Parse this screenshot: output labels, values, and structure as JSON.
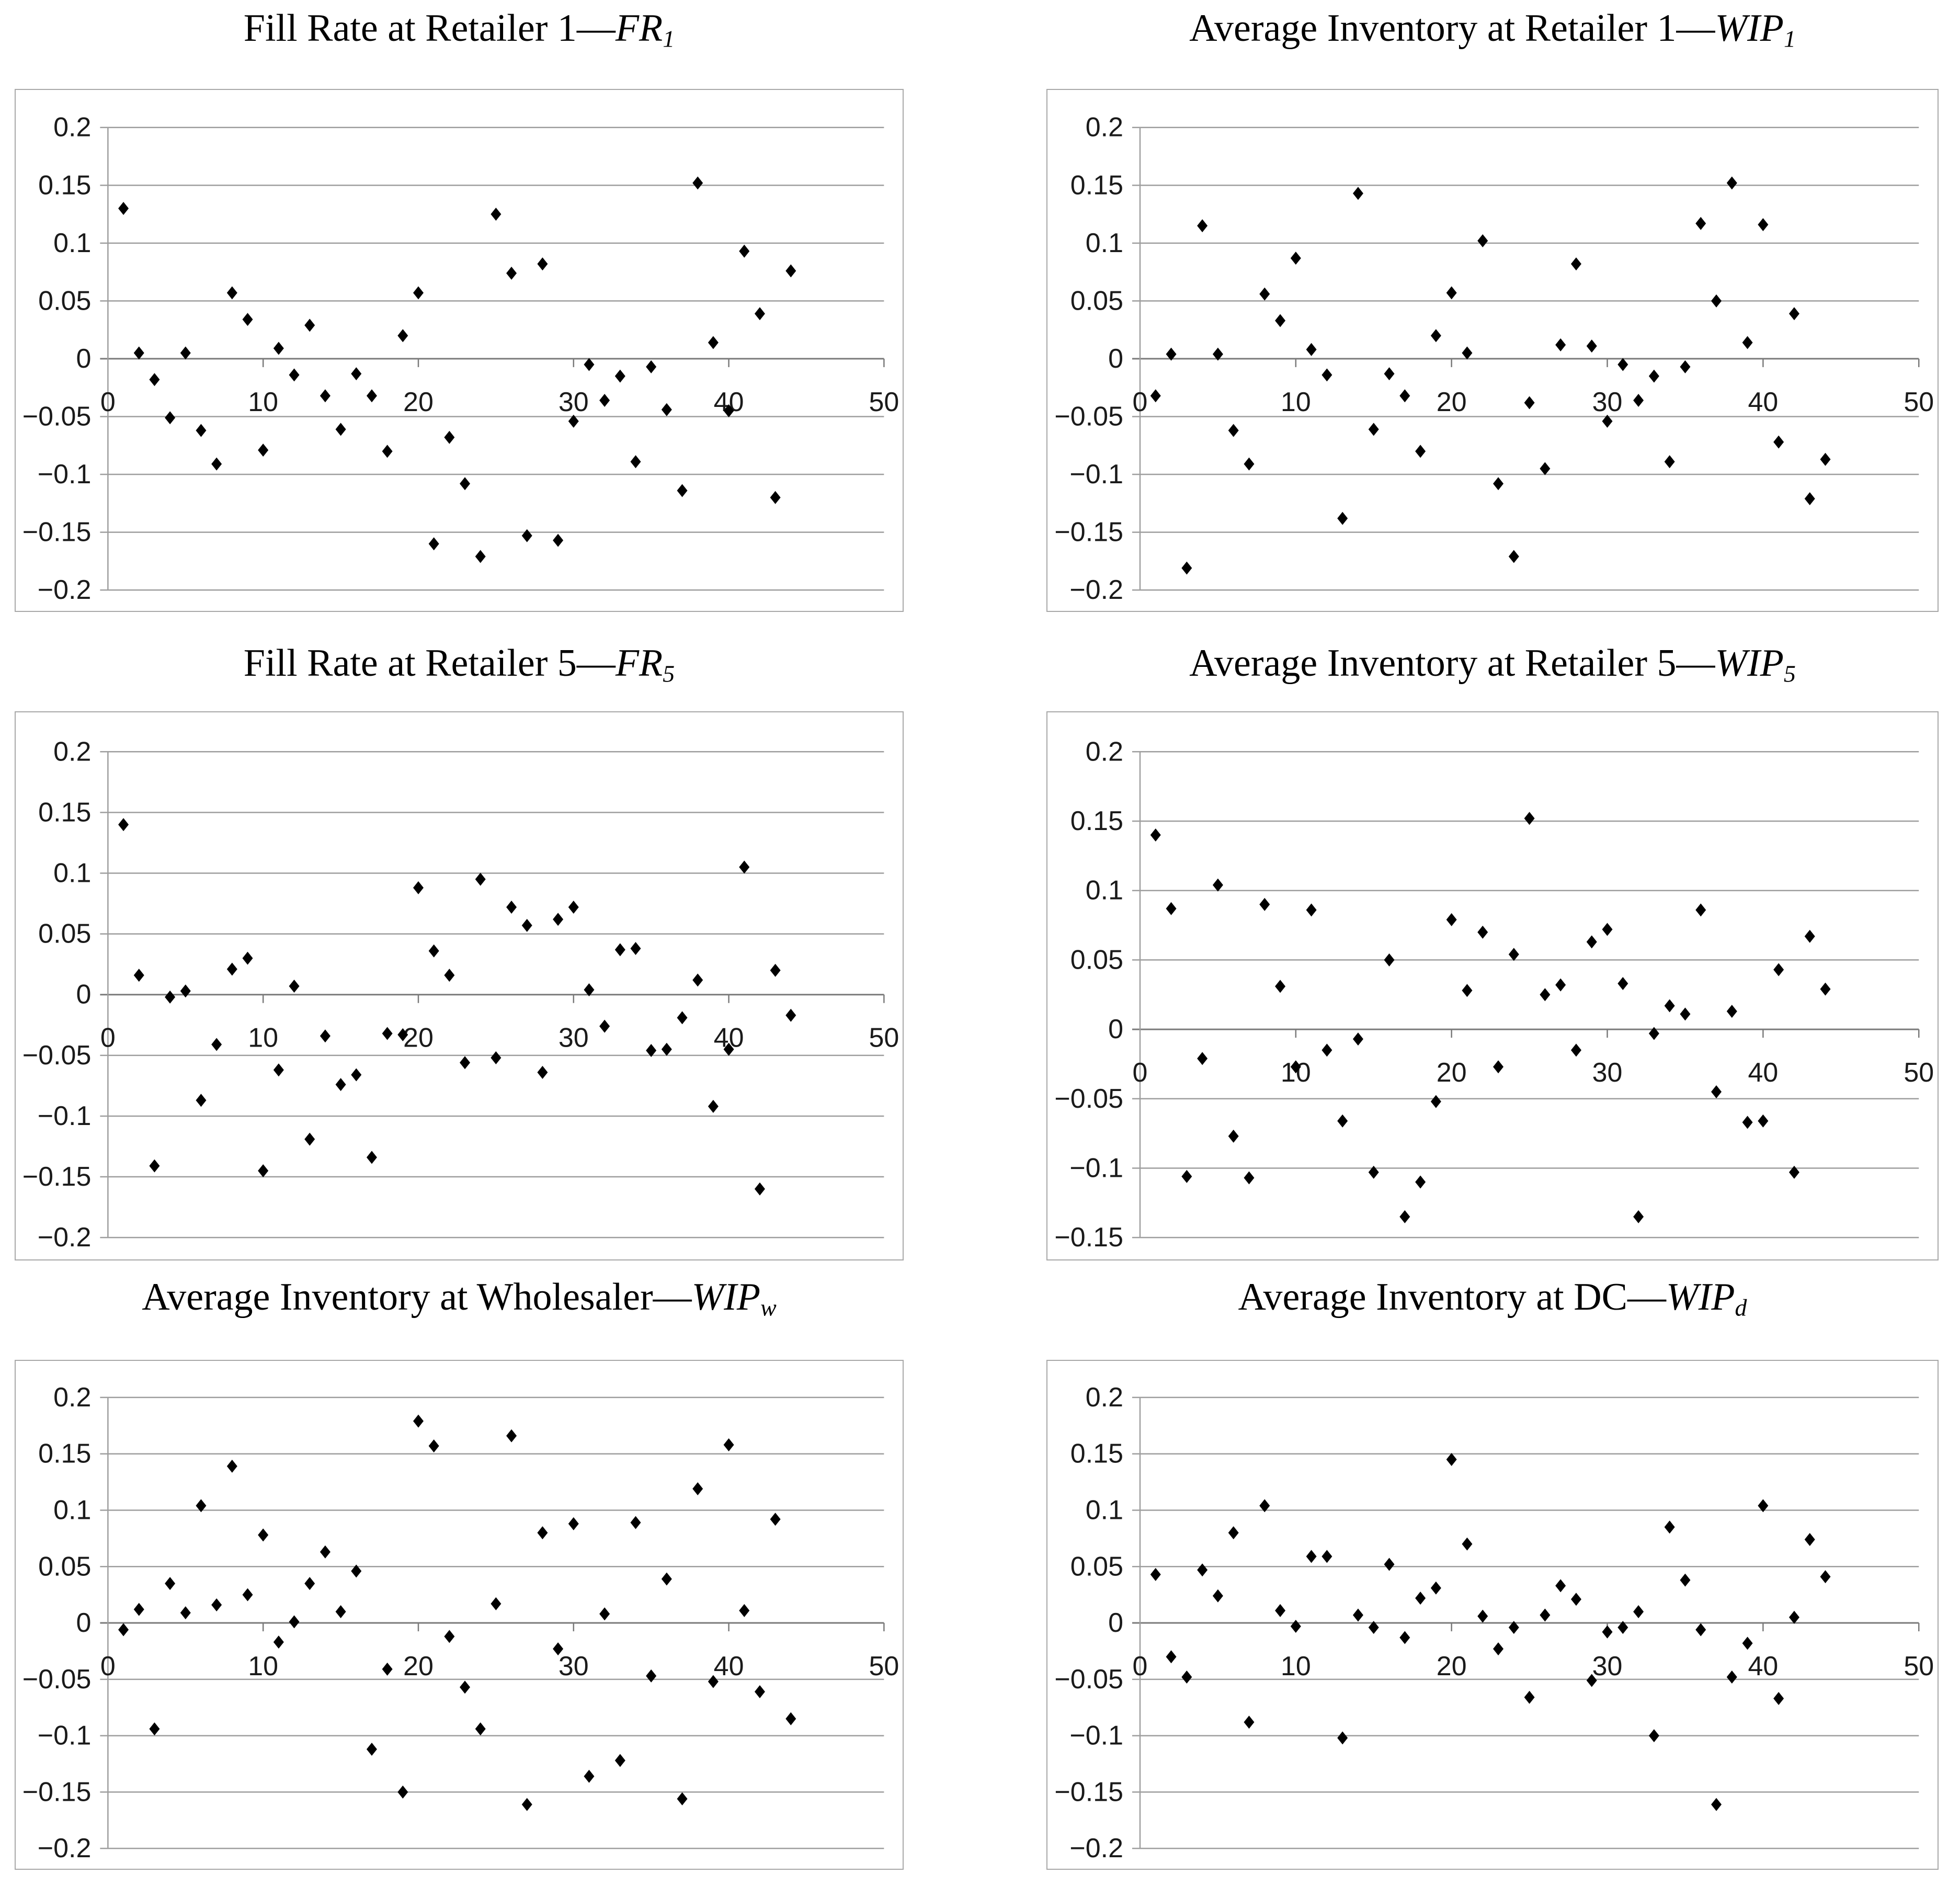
{
  "style": {
    "marker_color": "#000000",
    "gridline_color": "#9e9e9e",
    "zero_axis_color": "#7a7a7a",
    "yaxis_line_color": "#9e9e9e",
    "box_border_color": "#a8a8a8",
    "tick_label_color": "#1a1a1a",
    "background_color": "#ffffff"
  },
  "chart_data": [
    {
      "type": "scatter",
      "id": "FR1",
      "title": "Fill Rate at Retailer 1—FR1",
      "title_prefix": "Fill Rate at Retailer 1—",
      "title_var": "FR",
      "title_sub": "1",
      "marker": "diamond",
      "grid": "horizontal",
      "legend": "none",
      "xlabel": "",
      "ylabel": "",
      "xlim": [
        0,
        50
      ],
      "ylim": [
        -0.2,
        0.2
      ],
      "xticks": [
        0,
        10,
        20,
        30,
        40,
        50
      ],
      "yticks": [
        0.2,
        0.15,
        0.1,
        0.05,
        0,
        -0.05,
        -0.1,
        -0.15,
        -0.2
      ],
      "x": [
        1,
        2,
        3,
        4,
        5,
        6,
        7,
        8,
        9,
        10,
        11,
        12,
        13,
        14,
        15,
        16,
        17,
        18,
        19,
        20,
        21,
        22,
        23,
        24,
        25,
        26,
        27,
        28,
        29,
        30,
        31,
        32,
        33,
        34,
        35,
        36,
        37,
        38,
        39,
        40,
        41,
        42,
        43,
        44
      ],
      "y": [
        0.13,
        0.005,
        -0.018,
        -0.051,
        0.005,
        -0.062,
        -0.091,
        0.057,
        0.034,
        -0.079,
        0.009,
        -0.014,
        0.029,
        -0.032,
        -0.061,
        -0.013,
        -0.032,
        -0.08,
        0.02,
        0.057,
        -0.16,
        -0.068,
        -0.108,
        -0.171,
        0.125,
        0.074,
        -0.153,
        0.082,
        -0.157,
        -0.054,
        -0.005,
        -0.036,
        -0.015,
        -0.089,
        -0.007,
        -0.044,
        -0.114,
        0.152,
        0.014,
        -0.045,
        0.093,
        0.039,
        -0.12,
        0.076
      ]
    },
    {
      "type": "scatter",
      "id": "WIP1",
      "title": "Average Inventory at Retailer 1—WIP1",
      "title_prefix": "Average Inventory at Retailer 1—",
      "title_var": "WIP",
      "title_sub": "1",
      "marker": "diamond",
      "grid": "horizontal",
      "legend": "none",
      "xlabel": "",
      "ylabel": "",
      "xlim": [
        0,
        50
      ],
      "ylim": [
        -0.2,
        0.2
      ],
      "xticks": [
        0,
        10,
        20,
        30,
        40,
        50
      ],
      "yticks": [
        0.2,
        0.15,
        0.1,
        0.05,
        0,
        -0.05,
        -0.1,
        -0.15,
        -0.2
      ],
      "x": [
        1,
        2,
        3,
        4,
        5,
        6,
        7,
        8,
        9,
        10,
        11,
        12,
        13,
        14,
        15,
        16,
        17,
        18,
        19,
        20,
        21,
        22,
        23,
        24,
        25,
        26,
        27,
        28,
        29,
        30,
        31,
        32,
        33,
        34,
        35,
        36,
        37,
        38,
        39,
        40,
        41,
        42,
        43,
        44
      ],
      "y": [
        -0.032,
        0.004,
        -0.181,
        0.115,
        0.004,
        -0.062,
        -0.091,
        0.056,
        0.033,
        0.087,
        0.008,
        -0.014,
        -0.138,
        0.143,
        -0.061,
        -0.013,
        -0.032,
        -0.08,
        0.02,
        0.057,
        0.005,
        0.102,
        -0.108,
        -0.171,
        -0.038,
        -0.095,
        0.012,
        0.082,
        0.011,
        -0.054,
        -0.005,
        -0.036,
        -0.015,
        -0.089,
        -0.007,
        0.117,
        0.05,
        0.152,
        0.014,
        0.116,
        -0.072,
        0.039,
        -0.121,
        -0.087
      ]
    },
    {
      "type": "scatter",
      "id": "FR5",
      "title": "Fill Rate at Retailer 5—FR5",
      "title_prefix": "Fill Rate at Retailer 5—",
      "title_var": "FR",
      "title_sub": "5",
      "marker": "diamond",
      "grid": "horizontal",
      "legend": "none",
      "xlabel": "",
      "ylabel": "",
      "xlim": [
        0,
        50
      ],
      "ylim": [
        -0.2,
        0.2
      ],
      "xticks": [
        0,
        10,
        20,
        30,
        40,
        50
      ],
      "yticks": [
        0.2,
        0.15,
        0.1,
        0.05,
        0,
        -0.05,
        -0.1,
        -0.15,
        -0.2
      ],
      "x": [
        1,
        2,
        3,
        4,
        5,
        6,
        7,
        8,
        9,
        10,
        11,
        12,
        13,
        14,
        15,
        16,
        17,
        18,
        19,
        20,
        21,
        22,
        23,
        24,
        25,
        26,
        27,
        28,
        29,
        30,
        31,
        32,
        33,
        34,
        35,
        36,
        37,
        38,
        39,
        40,
        41,
        42,
        43,
        44
      ],
      "y": [
        0.14,
        0.016,
        -0.141,
        -0.002,
        0.003,
        -0.087,
        -0.041,
        0.021,
        0.03,
        -0.145,
        -0.062,
        0.007,
        -0.119,
        -0.034,
        -0.074,
        -0.066,
        -0.134,
        -0.032,
        -0.033,
        0.088,
        0.036,
        0.016,
        -0.056,
        0.095,
        -0.052,
        0.072,
        0.057,
        -0.064,
        0.062,
        0.072,
        0.004,
        -0.026,
        0.037,
        0.038,
        -0.046,
        -0.045,
        -0.019,
        0.012,
        -0.092,
        -0.045,
        0.105,
        -0.16,
        0.02,
        -0.017
      ]
    },
    {
      "type": "scatter",
      "id": "WIP5",
      "title": "Average Inventory at Retailer 5—WIP5",
      "title_prefix": "Average Inventory at Retailer 5—",
      "title_var": "WIP",
      "title_sub": "5",
      "marker": "diamond",
      "grid": "horizontal",
      "legend": "none",
      "xlabel": "",
      "ylabel": "",
      "xlim": [
        0,
        50
      ],
      "ylim": [
        -0.15,
        0.2
      ],
      "xticks": [
        0,
        10,
        20,
        30,
        40,
        50
      ],
      "yticks": [
        0.2,
        0.15,
        0.1,
        0.05,
        0,
        -0.05,
        -0.1,
        -0.15
      ],
      "x": [
        1,
        2,
        3,
        4,
        5,
        6,
        7,
        8,
        9,
        10,
        11,
        12,
        13,
        14,
        15,
        16,
        17,
        18,
        19,
        20,
        21,
        22,
        23,
        24,
        25,
        26,
        27,
        28,
        29,
        30,
        31,
        32,
        33,
        34,
        35,
        36,
        37,
        38,
        39,
        40,
        41,
        42,
        43,
        44
      ],
      "y": [
        0.14,
        0.087,
        -0.106,
        -0.021,
        0.104,
        -0.077,
        -0.107,
        0.09,
        0.031,
        -0.027,
        0.086,
        -0.015,
        -0.066,
        -0.007,
        -0.103,
        0.05,
        -0.135,
        -0.11,
        -0.052,
        0.079,
        0.028,
        0.07,
        -0.027,
        0.054,
        0.152,
        0.025,
        0.032,
        -0.015,
        0.063,
        0.072,
        0.033,
        -0.135,
        -0.003,
        0.017,
        0.011,
        0.086,
        -0.045,
        0.013,
        -0.067,
        -0.066,
        0.043,
        -0.103,
        0.067,
        0.029
      ]
    },
    {
      "type": "scatter",
      "id": "WIPw",
      "title": "Average Inventory at Wholesaler—WIPw",
      "title_prefix": "Average Inventory at Wholesaler—",
      "title_var": "WIP",
      "title_sub": "w",
      "marker": "diamond",
      "grid": "horizontal",
      "legend": "none",
      "xlabel": "",
      "ylabel": "",
      "xlim": [
        0,
        50
      ],
      "ylim": [
        -0.2,
        0.2
      ],
      "xticks": [
        0,
        10,
        20,
        30,
        40,
        50
      ],
      "yticks": [
        0.2,
        0.15,
        0.1,
        0.05,
        0,
        -0.05,
        -0.1,
        -0.15,
        -0.2
      ],
      "x": [
        1,
        2,
        3,
        4,
        5,
        6,
        7,
        8,
        9,
        10,
        11,
        12,
        13,
        14,
        15,
        16,
        17,
        18,
        19,
        20,
        21,
        22,
        23,
        24,
        25,
        26,
        27,
        28,
        29,
        30,
        31,
        32,
        33,
        34,
        35,
        36,
        37,
        38,
        39,
        40,
        41,
        42,
        43,
        44
      ],
      "y": [
        -0.006,
        0.012,
        -0.094,
        0.035,
        0.009,
        0.104,
        0.016,
        0.139,
        0.025,
        0.078,
        -0.017,
        0.001,
        0.035,
        0.063,
        0.01,
        0.046,
        -0.112,
        -0.041,
        -0.15,
        0.179,
        0.157,
        -0.012,
        -0.057,
        -0.094,
        0.017,
        0.166,
        -0.161,
        0.08,
        -0.023,
        0.088,
        -0.136,
        0.008,
        -0.122,
        0.089,
        -0.047,
        0.039,
        -0.156,
        0.119,
        -0.052,
        0.158,
        0.011,
        -0.061,
        0.092,
        -0.085
      ]
    },
    {
      "type": "scatter",
      "id": "WIPd",
      "title": "Average Inventory at DC—WIPd",
      "title_prefix": "Average Inventory at DC—",
      "title_var": "WIP",
      "title_sub": "d",
      "marker": "diamond",
      "grid": "horizontal",
      "legend": "none",
      "xlabel": "",
      "ylabel": "",
      "xlim": [
        0,
        50
      ],
      "ylim": [
        -0.2,
        0.2
      ],
      "xticks": [
        0,
        10,
        20,
        30,
        40,
        50
      ],
      "yticks": [
        0.2,
        0.15,
        0.1,
        0.05,
        0,
        -0.05,
        -0.1,
        -0.15,
        -0.2
      ],
      "x": [
        1,
        2,
        3,
        4,
        5,
        6,
        7,
        8,
        9,
        10,
        11,
        12,
        13,
        14,
        15,
        16,
        17,
        18,
        19,
        20,
        21,
        22,
        23,
        24,
        25,
        26,
        27,
        28,
        29,
        30,
        31,
        32,
        33,
        34,
        35,
        36,
        37,
        38,
        39,
        40,
        41,
        42,
        43,
        44
      ],
      "y": [
        0.043,
        -0.03,
        -0.048,
        0.047,
        0.024,
        0.08,
        -0.088,
        0.104,
        0.011,
        -0.003,
        0.059,
        0.059,
        -0.102,
        0.007,
        -0.004,
        0.052,
        -0.013,
        0.022,
        0.031,
        0.145,
        0.07,
        0.006,
        -0.023,
        -0.004,
        -0.066,
        0.007,
        0.033,
        0.021,
        -0.051,
        -0.008,
        -0.004,
        0.01,
        -0.1,
        0.085,
        0.038,
        -0.006,
        -0.161,
        -0.048,
        -0.018,
        0.104,
        -0.067,
        0.005,
        0.074,
        0.041
      ]
    }
  ]
}
